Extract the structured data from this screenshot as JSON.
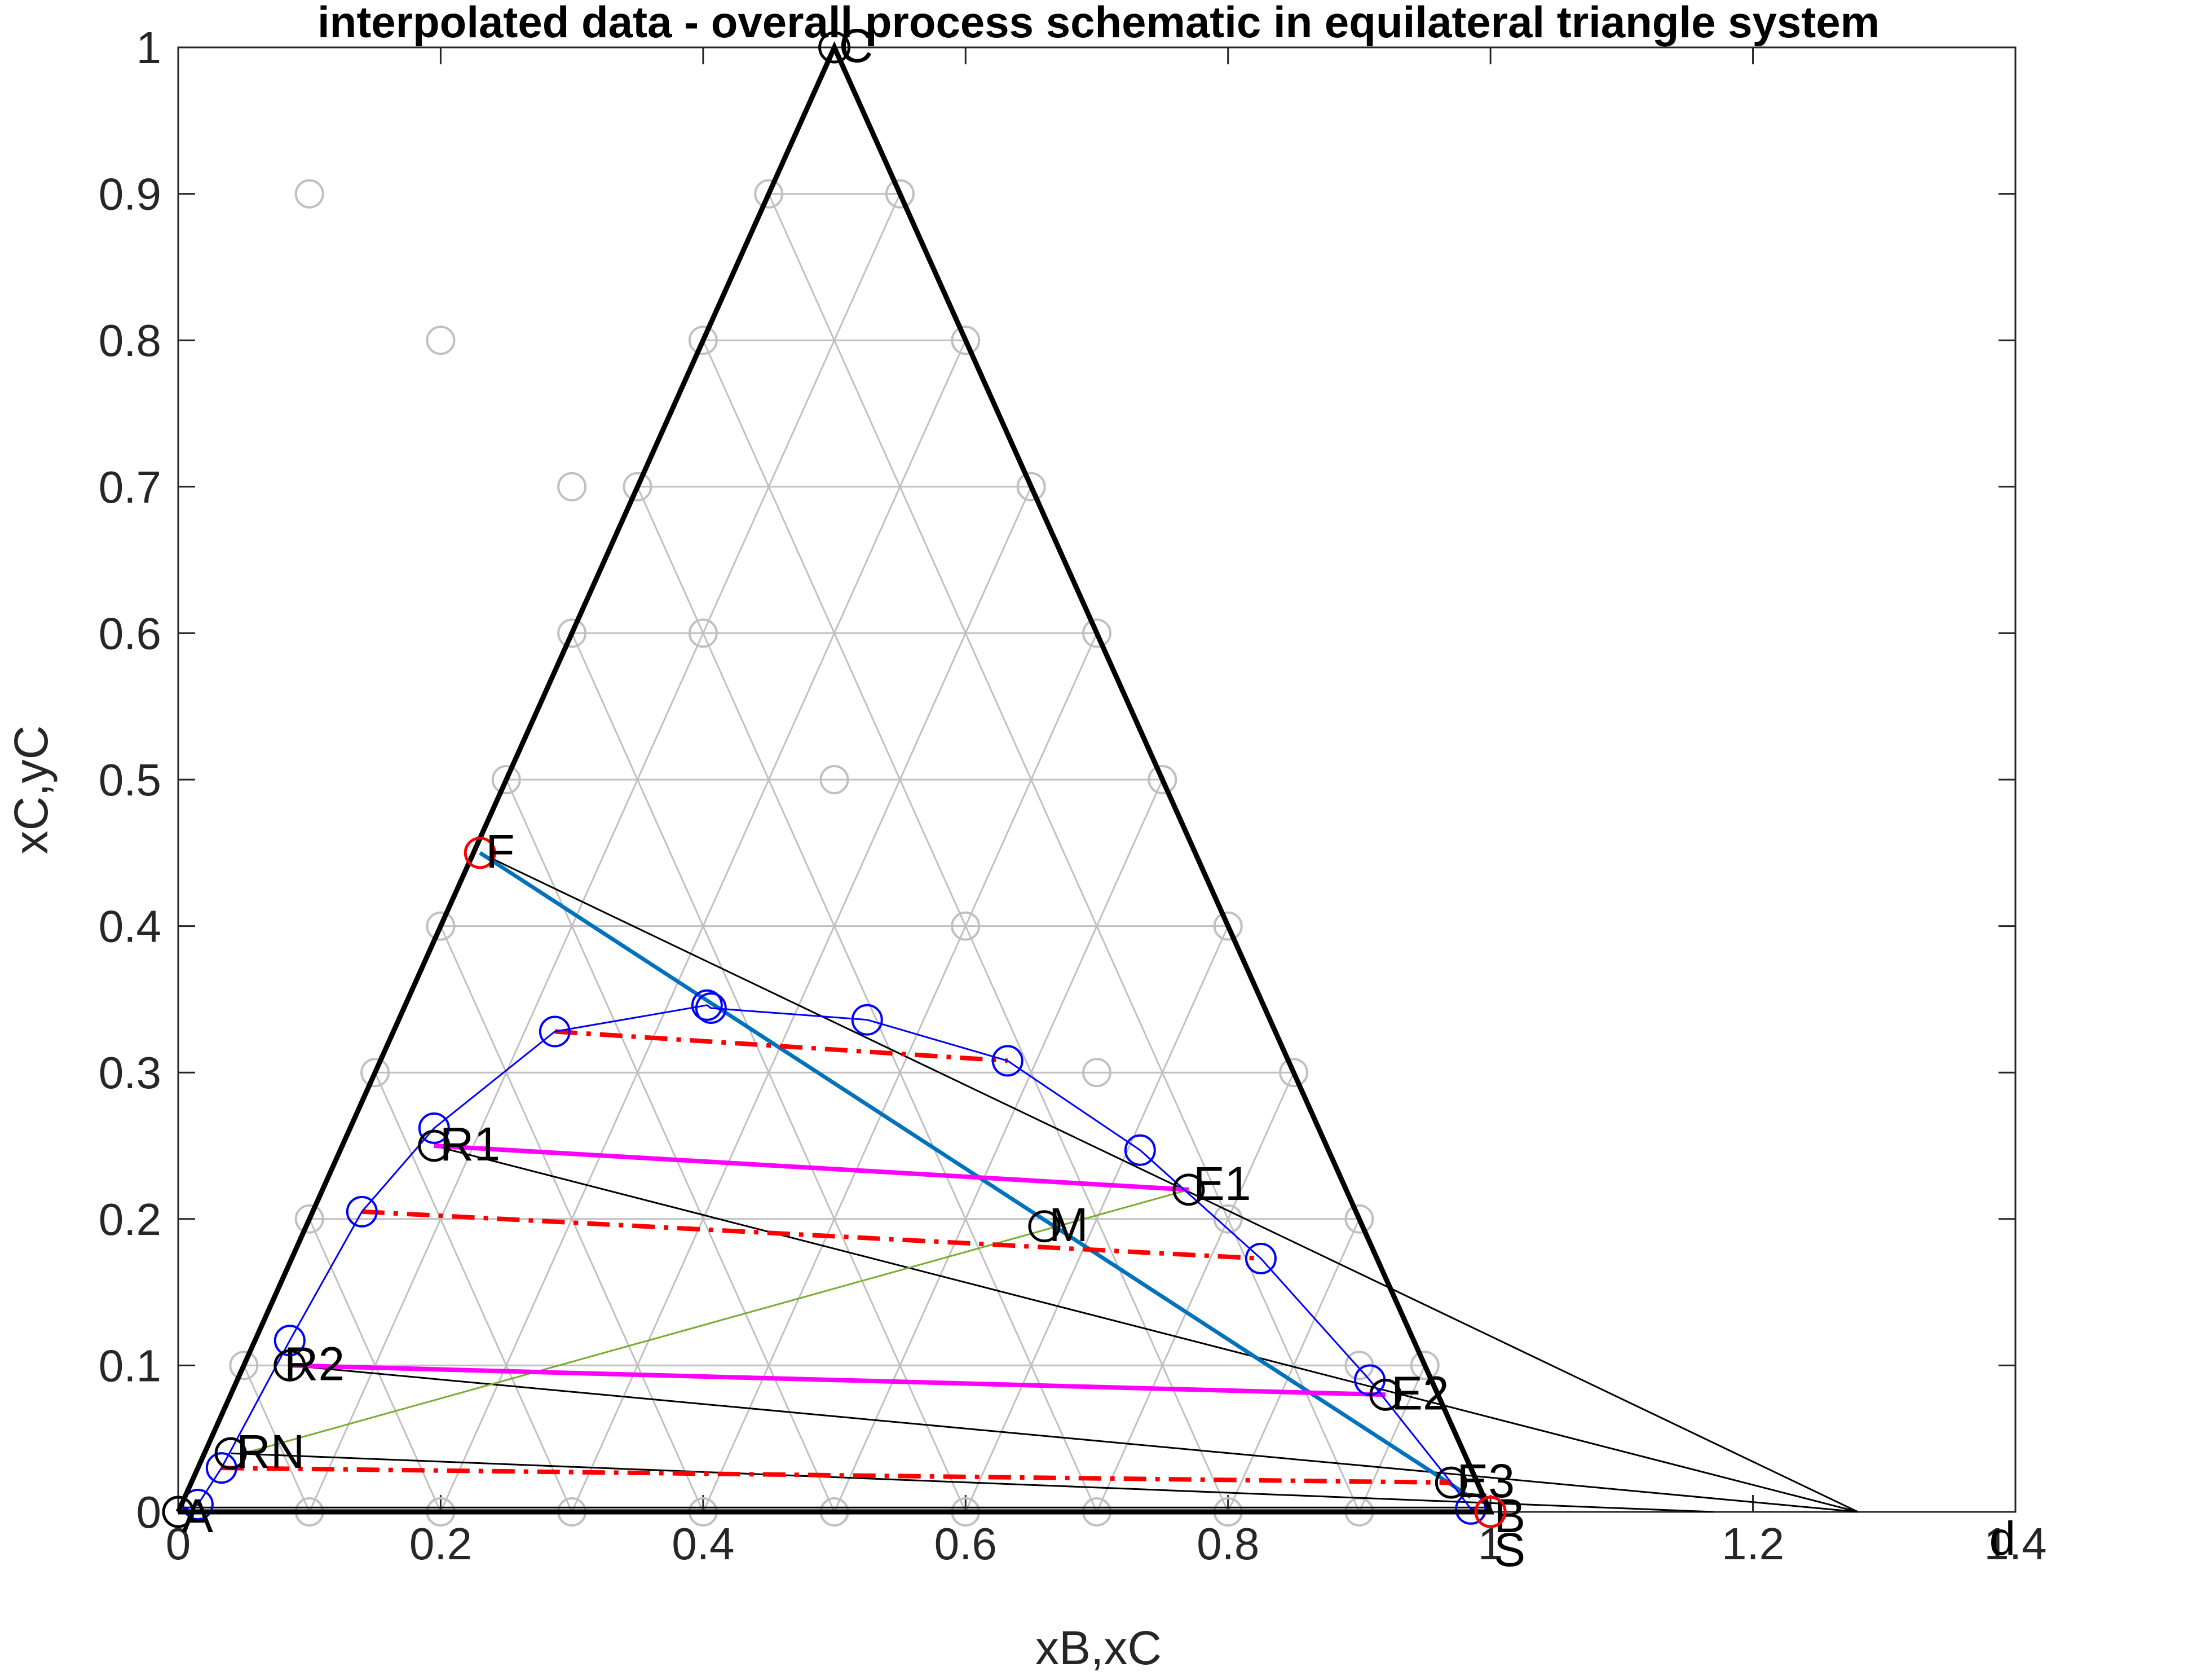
{
  "chart_data": {
    "type": "line",
    "title": "interpolated data - overall process schematic in equilateral triangle system",
    "xlabel": "xB,xC",
    "ylabel": "xC,yC",
    "xlim": [
      0,
      1.4
    ],
    "ylim": [
      0,
      1
    ],
    "xticks": [
      "0",
      "0.2",
      "0.4",
      "0.6",
      "0.8",
      "1",
      "1.2",
      "1.4"
    ],
    "xtick_values": [
      0,
      0.2,
      0.4,
      0.6,
      0.8,
      1,
      1.2,
      1.4
    ],
    "yticks": [
      "0",
      "0.1",
      "0.2",
      "0.3",
      "0.4",
      "0.5",
      "0.6",
      "0.7",
      "0.8",
      "0.9",
      "1"
    ],
    "ytick_values": [
      0,
      0.1,
      0.2,
      0.3,
      0.4,
      0.5,
      0.6,
      0.7,
      0.8,
      0.9,
      1
    ],
    "grid": false,
    "colors": {
      "triangle": "#000000",
      "grid_lines": "#c0c0c0",
      "binodal": "#0000ff",
      "tie_line_dashed": "#ff0000",
      "tie_line_solid": "#ff00ff",
      "mixing_line": "#0072bd",
      "construction_line": "#77ac30",
      "operating_line": "#000000",
      "feed_marker": "#ff0000"
    },
    "triangle": {
      "x": [
        0,
        1,
        0.5,
        0
      ],
      "y": [
        0,
        0,
        1,
        0
      ]
    },
    "grid_circles": [
      [
        0.9,
        0.1
      ],
      [
        0.8,
        0.2
      ],
      [
        0.7,
        0.3
      ],
      [
        0.6,
        0.4
      ],
      [
        0.5,
        0.5
      ],
      [
        0.4,
        0.6
      ],
      [
        0.3,
        0.7
      ],
      [
        0.2,
        0.8
      ],
      [
        0.1,
        0.9
      ],
      [
        0.95,
        0.1
      ],
      [
        0.9,
        0.2
      ],
      [
        0.85,
        0.3
      ],
      [
        0.8,
        0.4
      ],
      [
        0.75,
        0.5
      ],
      [
        0.7,
        0.6
      ],
      [
        0.65,
        0.7
      ],
      [
        0.6,
        0.8
      ],
      [
        0.55,
        0.9
      ],
      [
        0.05,
        0.1
      ],
      [
        0.1,
        0.2
      ],
      [
        0.15,
        0.3
      ],
      [
        0.2,
        0.4
      ],
      [
        0.25,
        0.5
      ],
      [
        0.3,
        0.6
      ],
      [
        0.35,
        0.7
      ],
      [
        0.4,
        0.8
      ],
      [
        0.45,
        0.9
      ],
      [
        0.1,
        0
      ],
      [
        0.2,
        0
      ],
      [
        0.3,
        0
      ],
      [
        0.4,
        0
      ],
      [
        0.5,
        0
      ],
      [
        0.6,
        0
      ],
      [
        0.7,
        0
      ],
      [
        0.8,
        0
      ],
      [
        0.9,
        0
      ]
    ],
    "series": [
      {
        "x": [
          0,
          0.015,
          0.033,
          0.085,
          0.14,
          0.195,
          0.287,
          0.403,
          0.406,
          0.525,
          0.632,
          0.733,
          0.825,
          0.908,
          0.97,
          0.985,
          1.0
        ],
        "y": [
          0,
          0.005,
          0.03,
          0.117,
          0.205,
          0.262,
          0.328,
          0.346,
          0.344,
          0.336,
          0.308,
          0.247,
          0.173,
          0.09,
          0.02,
          0.002,
          0
        ]
      }
    ],
    "tie_lines_dashed": [
      {
        "x": [
          0.287,
          0.632
        ],
        "y": [
          0.328,
          0.308
        ]
      },
      {
        "x": [
          0.14,
          0.825
        ],
        "y": [
          0.205,
          0.173
        ]
      },
      {
        "x": [
          0.033,
          0.97
        ],
        "y": [
          0.03,
          0.02
        ]
      }
    ],
    "tie_lines_solid": [
      {
        "x": [
          0.195,
          0.77
        ],
        "y": [
          0.25,
          0.22
        ]
      },
      {
        "x": [
          0.085,
          0.92
        ],
        "y": [
          0.1,
          0.08
        ]
      }
    ],
    "mixing_line": {
      "x": [
        0.23,
        0.985
      ],
      "y": [
        0.45,
        0.01
      ]
    },
    "construction_line": {
      "x": [
        0.05,
        0.77
      ],
      "y": [
        0.04,
        0.22
      ]
    },
    "operating_lines": [
      {
        "x": [
          0.23,
          1.28
        ],
        "y": [
          0.45,
          0
        ]
      },
      {
        "x": [
          0.195,
          1.28
        ],
        "y": [
          0.25,
          0
        ]
      },
      {
        "x": [
          0.085,
          1.28
        ],
        "y": [
          0.1,
          0
        ]
      },
      {
        "x": [
          0.04,
          1.17
        ],
        "y": [
          0.04,
          0
        ]
      },
      {
        "x": [
          0,
          1.0
        ],
        "y": [
          0.003,
          0.003
        ]
      }
    ],
    "points": [
      {
        "label": "C",
        "x": 0.5,
        "y": 1,
        "color": "#000000",
        "dx": 8,
        "dy": 0
      },
      {
        "label": "F",
        "x": 0.23,
        "y": 0.45,
        "color": "#ff0000",
        "dx": 10,
        "dy": 0
      },
      {
        "label": "R1",
        "x": 0.195,
        "y": 0.25,
        "color": "#000000",
        "dx": 10,
        "dy": 0
      },
      {
        "label": "E1",
        "x": 0.77,
        "y": 0.22,
        "color": "#000000",
        "dx": 8,
        "dy": -8
      },
      {
        "label": "M",
        "x": 0.66,
        "y": 0.195,
        "color": "#000000",
        "dx": 8,
        "dy": 0
      },
      {
        "label": "R2",
        "x": 0.085,
        "y": 0.1,
        "color": "#000000",
        "dx": -10,
        "dy": 0
      },
      {
        "label": "E2",
        "x": 0.92,
        "y": 0.08,
        "color": "#000000",
        "dx": 10,
        "dy": 0
      },
      {
        "label": "RN",
        "x": 0.04,
        "y": 0.04,
        "color": "#000000",
        "dx": 10,
        "dy": 0
      },
      {
        "label": "E3",
        "x": 0.97,
        "y": 0.02,
        "color": "#000000",
        "dx": 10,
        "dy": 0
      },
      {
        "label": "A",
        "x": 0,
        "y": 0,
        "color": "#000000",
        "dx": 6,
        "dy": 10
      },
      {
        "label": "B",
        "x": 1,
        "y": 0,
        "color": "#000000",
        "dx": 6,
        "dy": 10
      },
      {
        "label": "S",
        "x": 1.0,
        "y": 0,
        "color": "#ff0000",
        "dx": 6,
        "dy": 70
      },
      {
        "label": "d",
        "x": 1.38,
        "y": 0,
        "color": "#000000",
        "dx": 0,
        "dy": 50
      }
    ]
  }
}
